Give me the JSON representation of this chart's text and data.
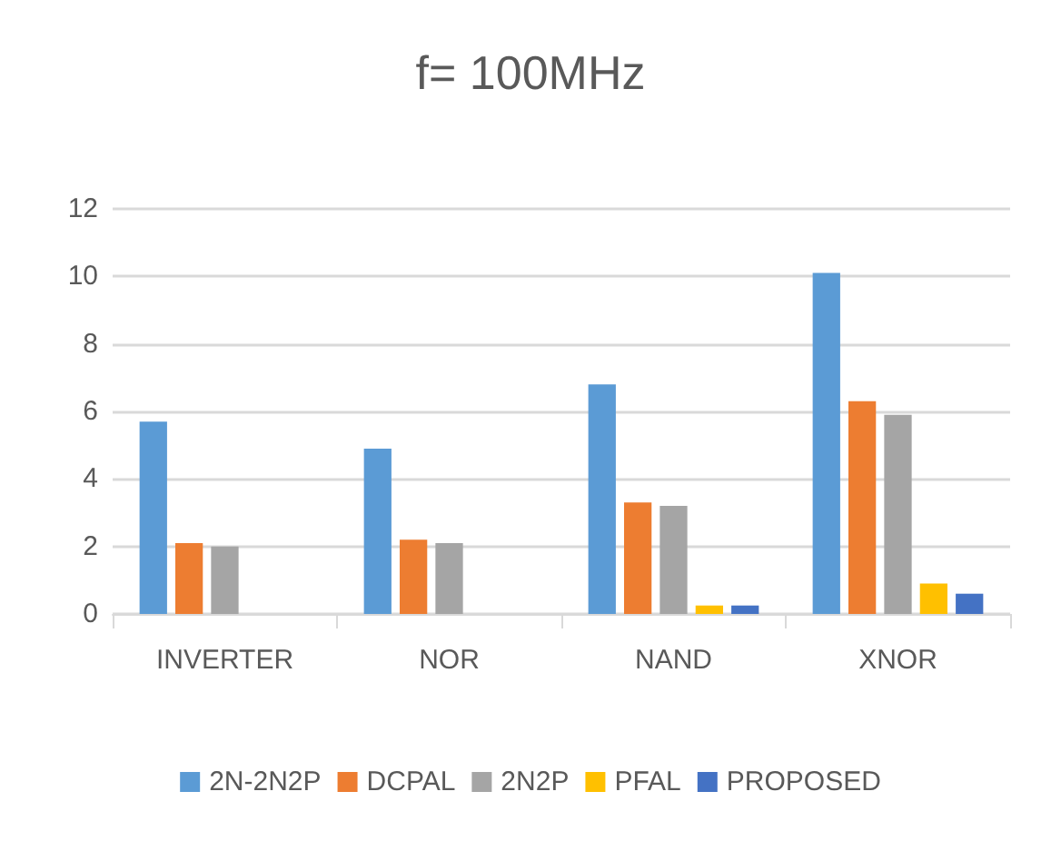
{
  "chart_data": {
    "type": "bar",
    "title": "f= 100MHz",
    "categories": [
      "INVERTER",
      "NOR",
      "NAND",
      "XNOR"
    ],
    "series": [
      {
        "name": "2N-2N2P",
        "color": "#5b9bd5",
        "values": [
          5.7,
          4.9,
          6.8,
          10.1
        ]
      },
      {
        "name": "DCPAL",
        "color": "#ed7d31",
        "values": [
          2.1,
          2.2,
          3.3,
          6.3
        ]
      },
      {
        "name": "2N2P",
        "color": "#a5a5a5",
        "values": [
          2.0,
          2.1,
          3.2,
          5.9
        ]
      },
      {
        "name": "PFAL",
        "color": "#ffc000",
        "values": [
          0,
          0,
          0.25,
          0.9
        ]
      },
      {
        "name": "PROPOSED",
        "color": "#4472c4",
        "values": [
          0,
          0,
          0.25,
          0.6
        ]
      }
    ],
    "ylim": [
      0,
      12
    ],
    "yticks": [
      0,
      2,
      4,
      6,
      8,
      10,
      12
    ],
    "grid": "y",
    "legend": "bottom"
  }
}
